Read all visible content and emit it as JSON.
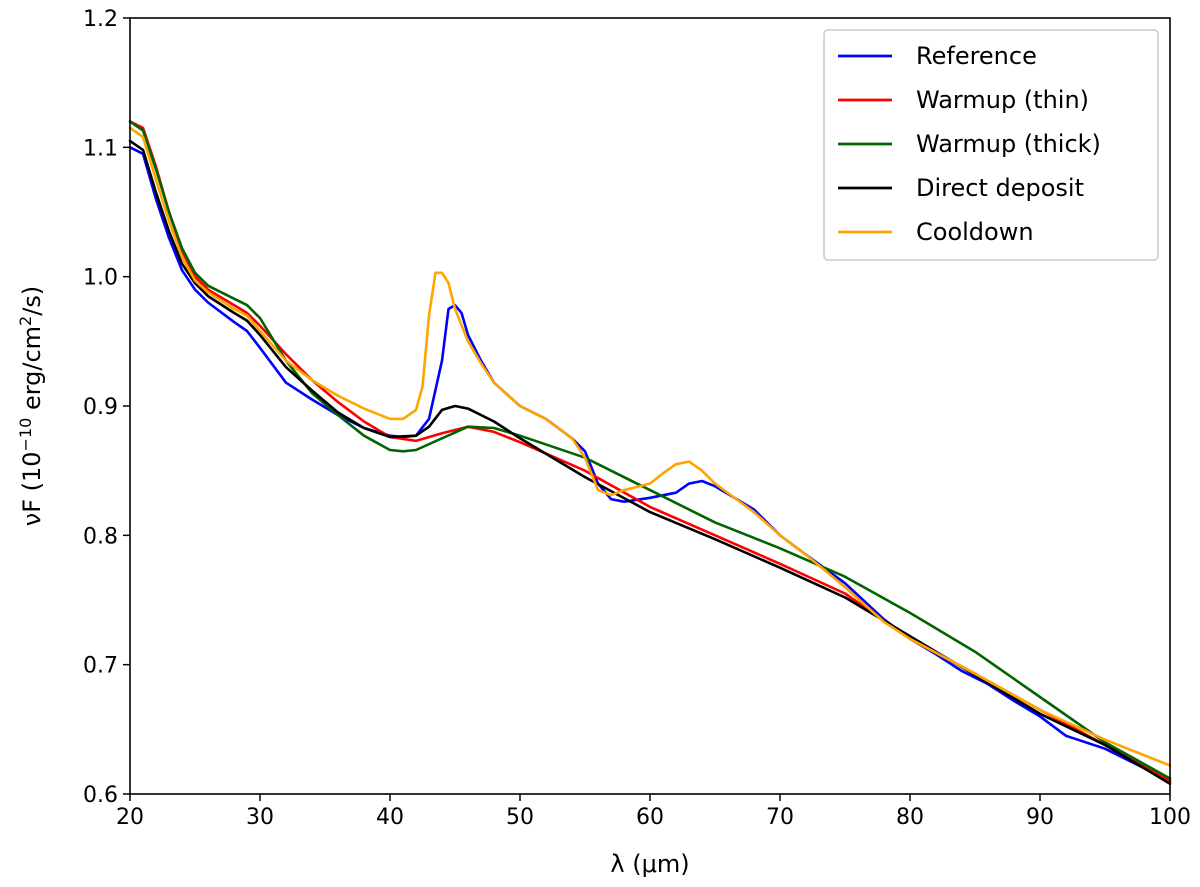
{
  "chart_data": {
    "type": "line",
    "title": "",
    "xlabel": "λ (μm)",
    "ylabel_parts": {
      "main": "νF (10",
      "exp1": "−10",
      "mid": " erg/cm",
      "exp2": "2",
      "end": "/s)"
    },
    "xlim": [
      20,
      100
    ],
    "ylim": [
      0.6,
      1.2
    ],
    "xticks": [
      "20",
      "30",
      "40",
      "50",
      "60",
      "70",
      "80",
      "90",
      "100"
    ],
    "yticks": [
      "0.6",
      "0.7",
      "0.8",
      "0.9",
      "1.0",
      "1.1",
      "1.2"
    ],
    "legend_position": "top-right",
    "grid": false,
    "series": [
      {
        "name": "Reference",
        "color": "#0000ff",
        "points": [
          [
            20,
            1.1
          ],
          [
            21,
            1.095
          ],
          [
            22,
            1.06
          ],
          [
            23,
            1.03
          ],
          [
            24,
            1.005
          ],
          [
            25,
            0.99
          ],
          [
            26,
            0.98
          ],
          [
            28,
            0.965
          ],
          [
            29,
            0.958
          ],
          [
            30,
            0.945
          ],
          [
            32,
            0.918
          ],
          [
            34,
            0.905
          ],
          [
            36,
            0.893
          ],
          [
            38,
            0.883
          ],
          [
            40,
            0.877
          ],
          [
            41,
            0.876
          ],
          [
            42,
            0.877
          ],
          [
            43,
            0.89
          ],
          [
            44,
            0.935
          ],
          [
            44.5,
            0.975
          ],
          [
            45,
            0.978
          ],
          [
            45.5,
            0.972
          ],
          [
            46,
            0.955
          ],
          [
            47,
            0.935
          ],
          [
            48,
            0.918
          ],
          [
            50,
            0.9
          ],
          [
            52,
            0.89
          ],
          [
            54,
            0.875
          ],
          [
            55,
            0.865
          ],
          [
            56,
            0.84
          ],
          [
            57,
            0.828
          ],
          [
            58,
            0.826
          ],
          [
            60,
            0.829
          ],
          [
            62,
            0.833
          ],
          [
            63,
            0.84
          ],
          [
            64,
            0.842
          ],
          [
            65,
            0.838
          ],
          [
            68,
            0.82
          ],
          [
            70,
            0.8
          ],
          [
            72,
            0.785
          ],
          [
            75,
            0.763
          ],
          [
            78,
            0.735
          ],
          [
            80,
            0.72
          ],
          [
            82,
            0.708
          ],
          [
            84,
            0.695
          ],
          [
            86,
            0.685
          ],
          [
            88,
            0.672
          ],
          [
            90,
            0.66
          ],
          [
            92,
            0.645
          ],
          [
            95,
            0.635
          ],
          [
            98,
            0.62
          ],
          [
            100,
            0.61
          ]
        ]
      },
      {
        "name": "Warmup (thin)",
        "color": "#ff0000",
        "points": [
          [
            20,
            1.12
          ],
          [
            21,
            1.115
          ],
          [
            22,
            1.085
          ],
          [
            23,
            1.05
          ],
          [
            24,
            1.02
          ],
          [
            25,
            1.0
          ],
          [
            26,
            0.99
          ],
          [
            28,
            0.978
          ],
          [
            29,
            0.972
          ],
          [
            30,
            0.962
          ],
          [
            32,
            0.94
          ],
          [
            34,
            0.92
          ],
          [
            36,
            0.903
          ],
          [
            38,
            0.888
          ],
          [
            40,
            0.876
          ],
          [
            42,
            0.873
          ],
          [
            44,
            0.879
          ],
          [
            46,
            0.884
          ],
          [
            48,
            0.88
          ],
          [
            50,
            0.872
          ],
          [
            55,
            0.85
          ],
          [
            60,
            0.822
          ],
          [
            65,
            0.8
          ],
          [
            70,
            0.778
          ],
          [
            75,
            0.755
          ],
          [
            80,
            0.72
          ],
          [
            85,
            0.693
          ],
          [
            90,
            0.665
          ],
          [
            95,
            0.638
          ],
          [
            100,
            0.61
          ]
        ]
      },
      {
        "name": "Warmup (thick)",
        "color": "#006400",
        "points": [
          [
            20,
            1.12
          ],
          [
            21,
            1.113
          ],
          [
            22,
            1.083
          ],
          [
            23,
            1.05
          ],
          [
            24,
            1.022
          ],
          [
            25,
            1.003
          ],
          [
            26,
            0.993
          ],
          [
            28,
            0.983
          ],
          [
            29,
            0.978
          ],
          [
            30,
            0.968
          ],
          [
            32,
            0.935
          ],
          [
            34,
            0.91
          ],
          [
            36,
            0.893
          ],
          [
            38,
            0.877
          ],
          [
            40,
            0.866
          ],
          [
            41,
            0.865
          ],
          [
            42,
            0.866
          ],
          [
            44,
            0.875
          ],
          [
            46,
            0.884
          ],
          [
            48,
            0.883
          ],
          [
            50,
            0.877
          ],
          [
            55,
            0.86
          ],
          [
            60,
            0.835
          ],
          [
            65,
            0.81
          ],
          [
            70,
            0.79
          ],
          [
            75,
            0.768
          ],
          [
            80,
            0.74
          ],
          [
            85,
            0.71
          ],
          [
            90,
            0.675
          ],
          [
            95,
            0.64
          ],
          [
            100,
            0.612
          ]
        ]
      },
      {
        "name": "Direct deposit",
        "color": "#000000",
        "points": [
          [
            20,
            1.105
          ],
          [
            21,
            1.098
          ],
          [
            22,
            1.065
          ],
          [
            23,
            1.035
          ],
          [
            24,
            1.01
          ],
          [
            25,
            0.995
          ],
          [
            26,
            0.985
          ],
          [
            28,
            0.972
          ],
          [
            29,
            0.966
          ],
          [
            30,
            0.955
          ],
          [
            32,
            0.93
          ],
          [
            34,
            0.912
          ],
          [
            36,
            0.895
          ],
          [
            38,
            0.883
          ],
          [
            40,
            0.876
          ],
          [
            42,
            0.877
          ],
          [
            43,
            0.884
          ],
          [
            44,
            0.897
          ],
          [
            45,
            0.9
          ],
          [
            46,
            0.898
          ],
          [
            48,
            0.888
          ],
          [
            50,
            0.875
          ],
          [
            55,
            0.845
          ],
          [
            60,
            0.818
          ],
          [
            65,
            0.797
          ],
          [
            70,
            0.775
          ],
          [
            75,
            0.752
          ],
          [
            80,
            0.722
          ],
          [
            85,
            0.692
          ],
          [
            90,
            0.662
          ],
          [
            95,
            0.638
          ],
          [
            100,
            0.608
          ]
        ]
      },
      {
        "name": "Cooldown",
        "color": "#ffa500",
        "points": [
          [
            20,
            1.115
          ],
          [
            21,
            1.108
          ],
          [
            22,
            1.075
          ],
          [
            23,
            1.043
          ],
          [
            24,
            1.015
          ],
          [
            25,
            0.997
          ],
          [
            26,
            0.988
          ],
          [
            28,
            0.975
          ],
          [
            29,
            0.97
          ],
          [
            30,
            0.958
          ],
          [
            32,
            0.935
          ],
          [
            34,
            0.92
          ],
          [
            36,
            0.908
          ],
          [
            38,
            0.898
          ],
          [
            40,
            0.89
          ],
          [
            41,
            0.89
          ],
          [
            42,
            0.897
          ],
          [
            42.5,
            0.915
          ],
          [
            43,
            0.97
          ],
          [
            43.5,
            1.003
          ],
          [
            44,
            1.003
          ],
          [
            44.5,
            0.995
          ],
          [
            45,
            0.975
          ],
          [
            46,
            0.95
          ],
          [
            47,
            0.933
          ],
          [
            48,
            0.918
          ],
          [
            50,
            0.9
          ],
          [
            52,
            0.89
          ],
          [
            54,
            0.875
          ],
          [
            55,
            0.86
          ],
          [
            56,
            0.835
          ],
          [
            57,
            0.831
          ],
          [
            58,
            0.835
          ],
          [
            60,
            0.84
          ],
          [
            61,
            0.848
          ],
          [
            62,
            0.855
          ],
          [
            63,
            0.857
          ],
          [
            64,
            0.85
          ],
          [
            65,
            0.84
          ],
          [
            68,
            0.818
          ],
          [
            70,
            0.8
          ],
          [
            72,
            0.785
          ],
          [
            75,
            0.76
          ],
          [
            78,
            0.733
          ],
          [
            80,
            0.72
          ],
          [
            85,
            0.693
          ],
          [
            90,
            0.665
          ],
          [
            95,
            0.642
          ],
          [
            100,
            0.622
          ]
        ]
      }
    ]
  }
}
